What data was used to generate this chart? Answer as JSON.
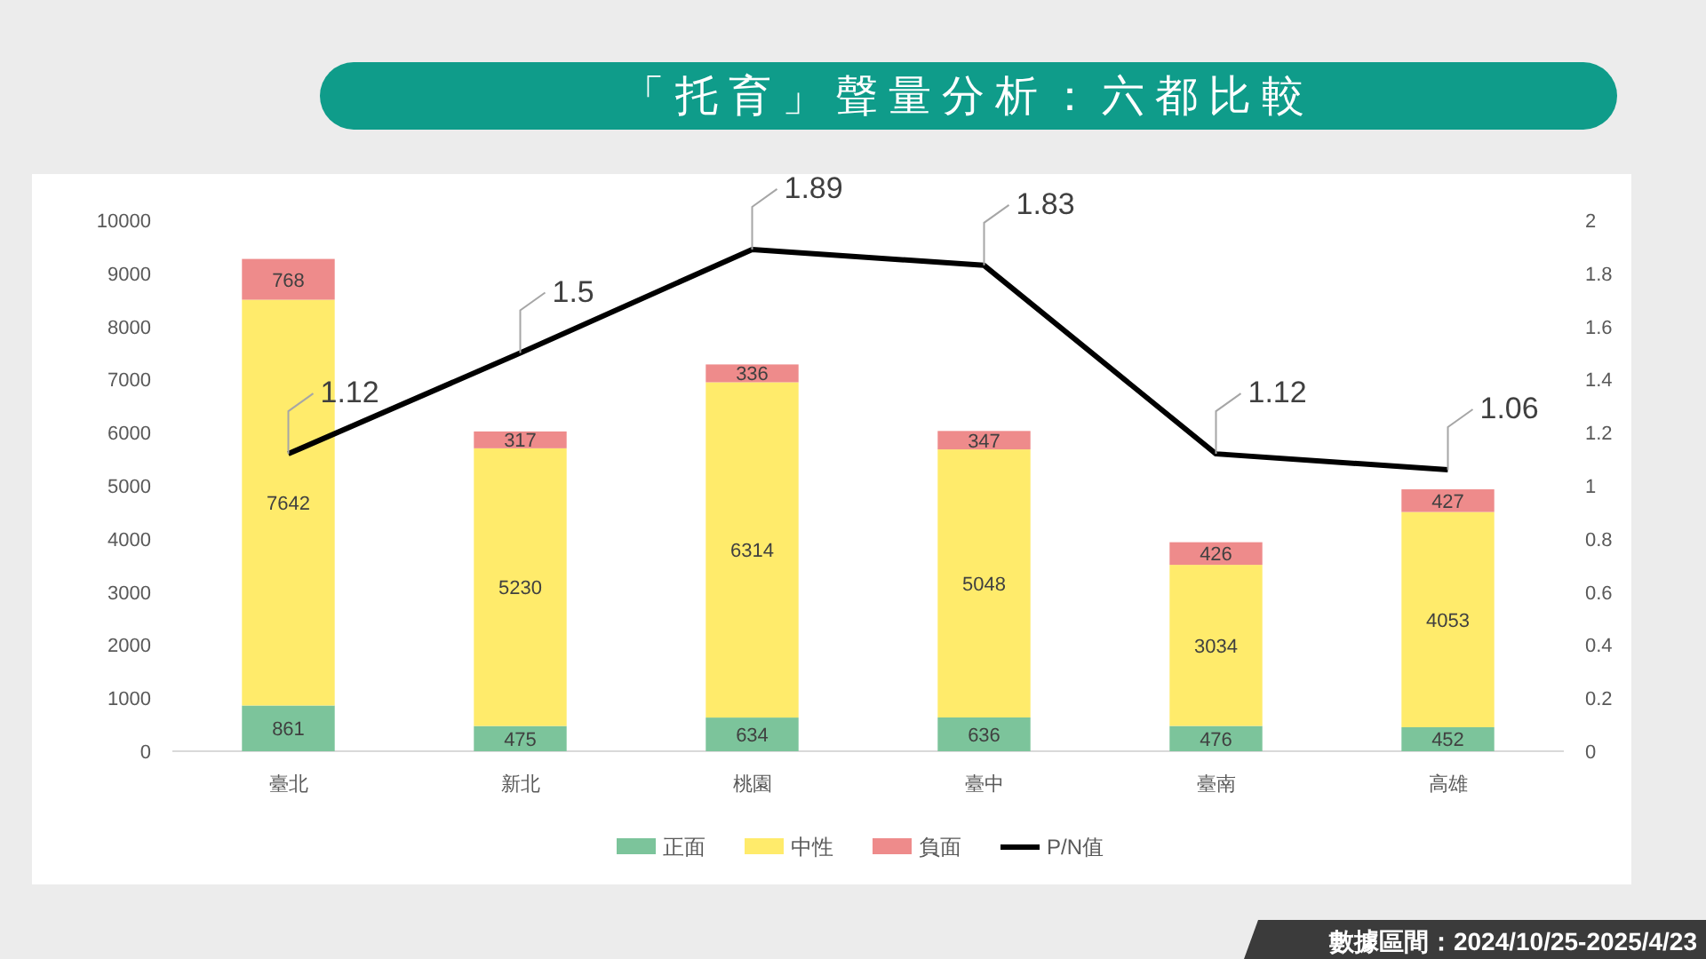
{
  "chart_data": {
    "type": "bar",
    "title": "「托育」聲量分析：六都比較",
    "categories": [
      "臺北",
      "新北",
      "桃園",
      "臺中",
      "臺南",
      "高雄"
    ],
    "stacked": true,
    "series": [
      {
        "name": "正面",
        "color": "#7cc49b",
        "values": [
          861,
          475,
          634,
          636,
          476,
          452
        ]
      },
      {
        "name": "中性",
        "color": "#ffeb6b",
        "values": [
          7642,
          5230,
          6314,
          5048,
          3034,
          4053
        ]
      },
      {
        "name": "負面",
        "color": "#ee8b8b",
        "values": [
          768,
          317,
          336,
          347,
          426,
          427
        ]
      },
      {
        "name": "P/N值",
        "type": "line",
        "axis": "y2",
        "color": "#000000",
        "values": [
          1.12,
          1.5,
          1.89,
          1.83,
          1.12,
          1.06
        ]
      }
    ],
    "ylim": [
      0,
      10000
    ],
    "yticks": [
      0,
      1000,
      2000,
      3000,
      4000,
      5000,
      6000,
      7000,
      8000,
      9000,
      10000
    ],
    "y2lim": [
      0,
      2
    ],
    "y2ticks": [
      0,
      0.2,
      0.4,
      0.6,
      0.8,
      1,
      1.2,
      1.4,
      1.6,
      1.8,
      2
    ],
    "data_labels": true,
    "legend": "bottom",
    "annotations": [
      "數據區間：2024/10/25-2025/4/23"
    ]
  }
}
